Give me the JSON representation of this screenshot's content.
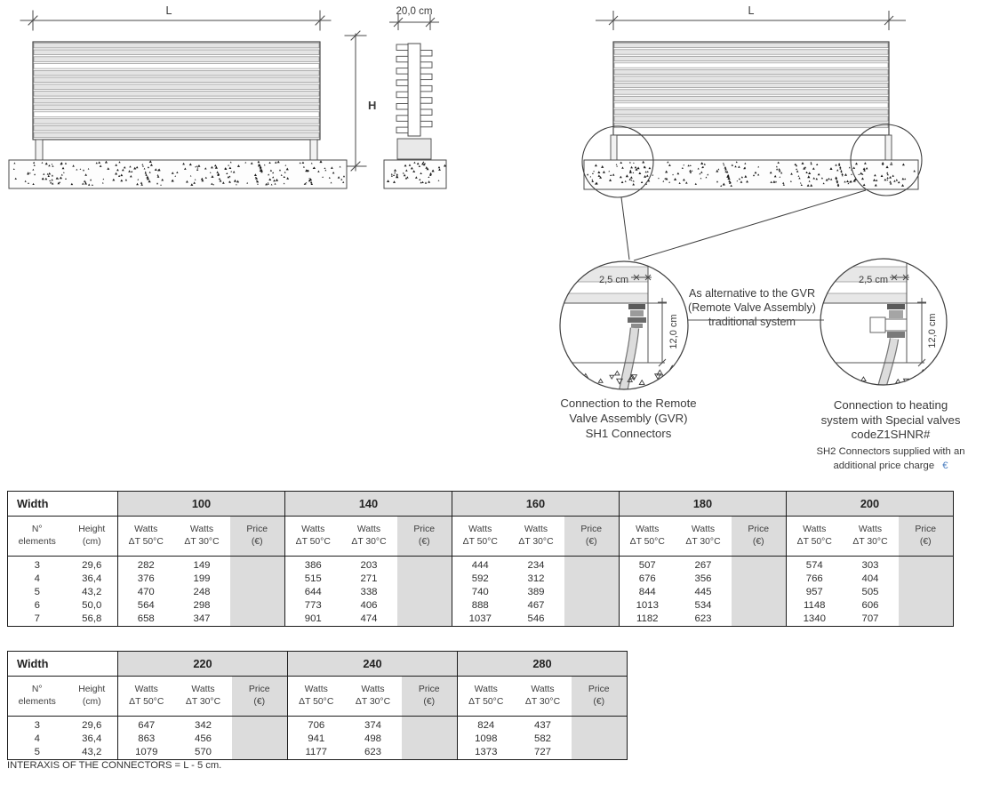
{
  "accent_blue": "#4a7ec0",
  "drawing": {
    "front_left": {
      "dim_length": "L",
      "dim_height": "H"
    },
    "side_view": {
      "dim_width": "20,0 cm"
    },
    "front_right": {
      "dim_length": "L"
    },
    "alternative_note": [
      "As alternative to the GVR",
      "(Remote Valve Assembly)",
      "traditional system"
    ],
    "detail_left": {
      "dim_offset": "2,5 cm",
      "dim_depth": "12,0 cm",
      "caption": [
        "Connection to the Remote",
        "Valve Assembly (GVR)",
        "SH1 Connectors"
      ]
    },
    "detail_right": {
      "dim_offset": "2,5 cm",
      "dim_depth": "12,0 cm",
      "caption": [
        "Connection to heating",
        "system with Special valves",
        "codeZ1SHNR#"
      ],
      "note": [
        "SH2 Connectors supplied with an",
        "additional price charge"
      ],
      "note_currency": "€"
    }
  },
  "tables": [
    {
      "width_label": "Width",
      "col_elements": [
        "N°",
        "elements"
      ],
      "col_height": [
        "Height",
        "(cm)"
      ],
      "col_watts50": [
        "Watts",
        "ΔT 50°C"
      ],
      "col_watts30": [
        "Watts",
        "ΔT 30°C"
      ],
      "col_price": [
        "Price",
        "(€)"
      ],
      "widths": [
        "100",
        "140",
        "160",
        "180",
        "200"
      ],
      "rows": [
        {
          "elements": "3",
          "height_cm": "29,6",
          "values": [
            [
              "282",
              "149",
              ""
            ],
            [
              "386",
              "203",
              ""
            ],
            [
              "444",
              "234",
              ""
            ],
            [
              "507",
              "267",
              ""
            ],
            [
              "574",
              "303",
              ""
            ]
          ]
        },
        {
          "elements": "4",
          "height_cm": "36,4",
          "values": [
            [
              "376",
              "199",
              ""
            ],
            [
              "515",
              "271",
              ""
            ],
            [
              "592",
              "312",
              ""
            ],
            [
              "676",
              "356",
              ""
            ],
            [
              "766",
              "404",
              ""
            ]
          ]
        },
        {
          "elements": "5",
          "height_cm": "43,2",
          "values": [
            [
              "470",
              "248",
              ""
            ],
            [
              "644",
              "338",
              ""
            ],
            [
              "740",
              "389",
              ""
            ],
            [
              "844",
              "445",
              ""
            ],
            [
              "957",
              "505",
              ""
            ]
          ]
        },
        {
          "elements": "6",
          "height_cm": "50,0",
          "values": [
            [
              "564",
              "298",
              ""
            ],
            [
              "773",
              "406",
              ""
            ],
            [
              "888",
              "467",
              ""
            ],
            [
              "1013",
              "534",
              ""
            ],
            [
              "1148",
              "606",
              ""
            ]
          ]
        },
        {
          "elements": "7",
          "height_cm": "56,8",
          "values": [
            [
              "658",
              "347",
              ""
            ],
            [
              "901",
              "474",
              ""
            ],
            [
              "1037",
              "546",
              ""
            ],
            [
              "1182",
              "623",
              ""
            ],
            [
              "1340",
              "707",
              ""
            ]
          ]
        }
      ]
    },
    {
      "width_label": "Width",
      "col_elements": [
        "N°",
        "elements"
      ],
      "col_height": [
        "Height",
        "(cm)"
      ],
      "col_watts50": [
        "Watts",
        "ΔT 50°C"
      ],
      "col_watts30": [
        "Watts",
        "ΔT 30°C"
      ],
      "col_price": [
        "Price",
        "(€)"
      ],
      "widths": [
        "220",
        "240",
        "280"
      ],
      "rows": [
        {
          "elements": "3",
          "height_cm": "29,6",
          "values": [
            [
              "647",
              "342",
              ""
            ],
            [
              "706",
              "374",
              ""
            ],
            [
              "824",
              "437",
              ""
            ]
          ]
        },
        {
          "elements": "4",
          "height_cm": "36,4",
          "values": [
            [
              "863",
              "456",
              ""
            ],
            [
              "941",
              "498",
              ""
            ],
            [
              "1098",
              "582",
              ""
            ]
          ]
        },
        {
          "elements": "5",
          "height_cm": "43,2",
          "values": [
            [
              "1079",
              "570",
              ""
            ],
            [
              "1177",
              "623",
              ""
            ],
            [
              "1373",
              "727",
              ""
            ]
          ]
        }
      ]
    }
  ],
  "footnote": "INTERAXIS OF THE CONNECTORS = L - 5 cm."
}
